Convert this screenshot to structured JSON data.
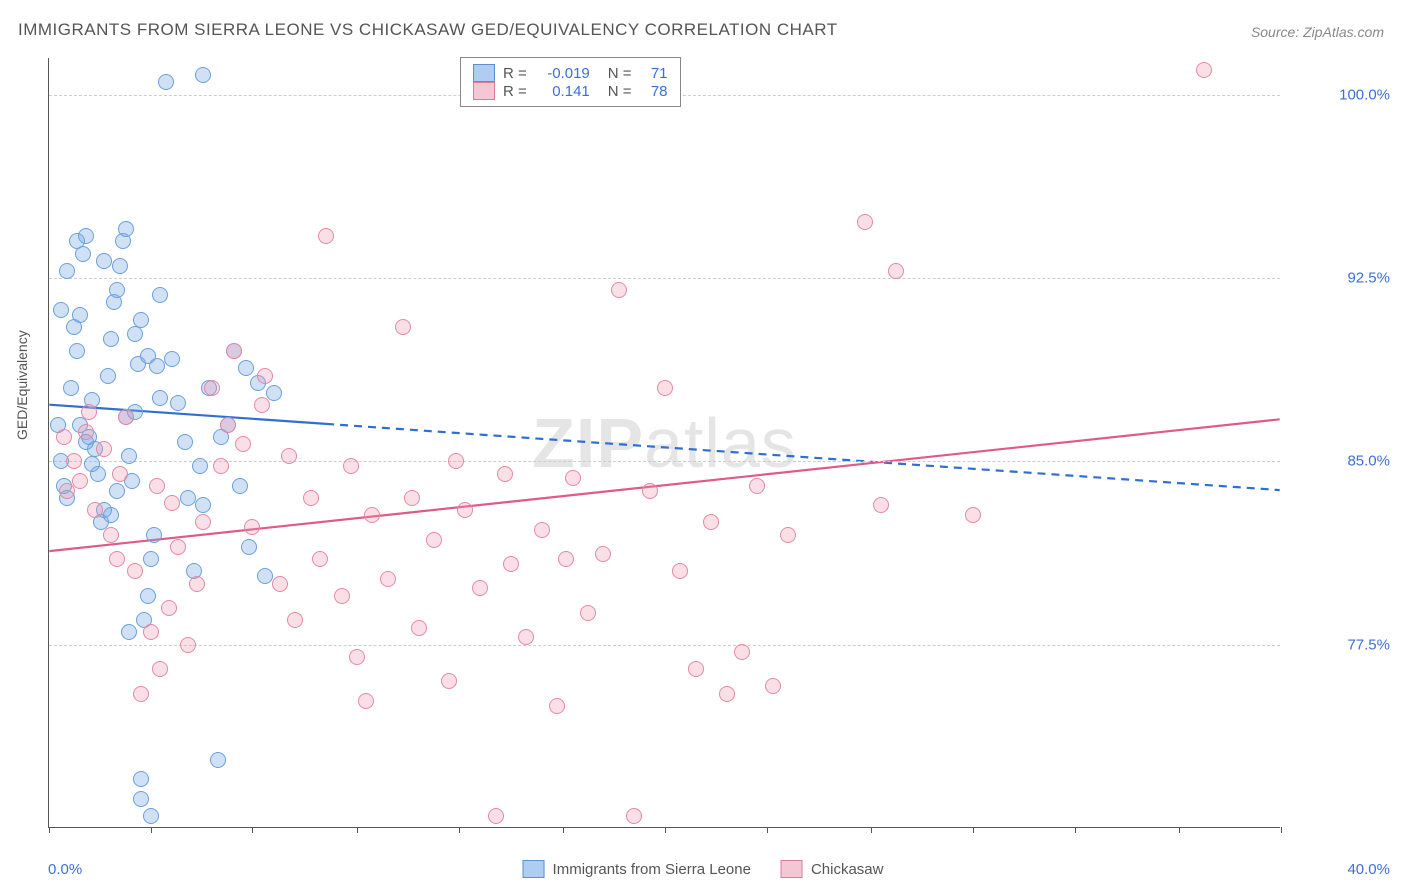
{
  "title": "IMMIGRANTS FROM SIERRA LEONE VS CHICKASAW GED/EQUIVALENCY CORRELATION CHART",
  "source_label": "Source: ",
  "source_name": "ZipAtlas.com",
  "ylabel": "GED/Equivalency",
  "watermark_bold": "ZIP",
  "watermark_rest": "atlas",
  "chart": {
    "type": "scatter",
    "background_color": "#ffffff",
    "grid_color": "#cccccc",
    "axis_color": "#555555",
    "tick_label_color": "#3b6fd8",
    "xlim": [
      0.0,
      40.0
    ],
    "ylim": [
      70.0,
      101.5
    ],
    "xtick_positions": [
      0,
      3.3,
      6.6,
      10,
      13.3,
      16.7,
      20,
      23.3,
      26.7,
      30,
      33.3,
      36.7,
      40
    ],
    "xtick_labels_shown": {
      "left": "0.0%",
      "right": "40.0%"
    },
    "ytick_positions": [
      77.5,
      85.0,
      92.5,
      100.0
    ],
    "ytick_labels": [
      "77.5%",
      "85.0%",
      "92.5%",
      "100.0%"
    ],
    "marker_radius": 8,
    "marker_stroke_width": 1.5,
    "series": [
      {
        "name": "Immigrants from Sierra Leone",
        "color_fill": "rgba(120,170,230,0.35)",
        "color_stroke": "#6aa0dc",
        "swatch_fill": "#aecdf0",
        "swatch_border": "#5a8fd0",
        "R": "-0.019",
        "N": "71",
        "trend": {
          "x1": 0.0,
          "y1": 87.3,
          "x2": 40.0,
          "y2": 83.8,
          "solid_until_x": 9.0,
          "color": "#2f6fd0",
          "width": 2.2
        },
        "points": [
          [
            0.3,
            86.5
          ],
          [
            0.4,
            85.0
          ],
          [
            0.5,
            84.0
          ],
          [
            0.6,
            83.5
          ],
          [
            0.7,
            88.0
          ],
          [
            0.8,
            90.5
          ],
          [
            0.9,
            89.5
          ],
          [
            1.0,
            91.0
          ],
          [
            1.1,
            93.5
          ],
          [
            1.2,
            94.2
          ],
          [
            1.3,
            86.0
          ],
          [
            1.4,
            87.5
          ],
          [
            1.5,
            85.5
          ],
          [
            1.6,
            84.5
          ],
          [
            1.7,
            82.5
          ],
          [
            1.8,
            83.0
          ],
          [
            1.9,
            88.5
          ],
          [
            2.0,
            90.0
          ],
          [
            2.1,
            91.5
          ],
          [
            2.2,
            92.0
          ],
          [
            2.3,
            93.0
          ],
          [
            2.4,
            94.0
          ],
          [
            2.5,
            86.8
          ],
          [
            2.6,
            85.2
          ],
          [
            2.7,
            84.2
          ],
          [
            2.8,
            87.0
          ],
          [
            2.9,
            89.0
          ],
          [
            3.0,
            90.8
          ],
          [
            3.1,
            78.5
          ],
          [
            3.2,
            79.5
          ],
          [
            3.3,
            81.0
          ],
          [
            3.4,
            82.0
          ],
          [
            3.5,
            88.9
          ],
          [
            3.6,
            91.8
          ],
          [
            3.8,
            100.5
          ],
          [
            4.0,
            89.2
          ],
          [
            4.2,
            87.4
          ],
          [
            4.5,
            83.5
          ],
          [
            4.7,
            80.5
          ],
          [
            4.9,
            84.8
          ],
          [
            5.0,
            100.8
          ],
          [
            5.2,
            88.0
          ],
          [
            5.5,
            72.8
          ],
          [
            5.8,
            86.5
          ],
          [
            6.0,
            89.5
          ],
          [
            6.2,
            84.0
          ],
          [
            6.5,
            81.5
          ],
          [
            6.8,
            88.2
          ],
          [
            7.0,
            80.3
          ],
          [
            7.3,
            87.8
          ],
          [
            3.0,
            72.0
          ],
          [
            3.3,
            70.5
          ],
          [
            2.5,
            94.5
          ],
          [
            1.8,
            93.2
          ],
          [
            0.9,
            94.0
          ],
          [
            0.6,
            92.8
          ],
          [
            0.4,
            91.2
          ],
          [
            1.0,
            86.5
          ],
          [
            1.2,
            85.8
          ],
          [
            1.4,
            84.9
          ],
          [
            2.0,
            82.8
          ],
          [
            2.2,
            83.8
          ],
          [
            2.8,
            90.2
          ],
          [
            3.2,
            89.3
          ],
          [
            3.6,
            87.6
          ],
          [
            4.4,
            85.8
          ],
          [
            5.0,
            83.2
          ],
          [
            5.6,
            86.0
          ],
          [
            6.4,
            88.8
          ],
          [
            2.6,
            78.0
          ],
          [
            3.0,
            71.2
          ]
        ]
      },
      {
        "name": "Chickasaw",
        "color_fill": "rgba(240,150,175,0.30)",
        "color_stroke": "#e389a4",
        "swatch_fill": "#f5c6d3",
        "swatch_border": "#de7b9a",
        "R": "0.141",
        "N": "78",
        "trend": {
          "x1": 0.0,
          "y1": 81.3,
          "x2": 40.0,
          "y2": 86.7,
          "solid_until_x": 40.0,
          "color": "#e05a86",
          "width": 2.2
        },
        "points": [
          [
            0.5,
            86.0
          ],
          [
            0.8,
            85.0
          ],
          [
            1.0,
            84.2
          ],
          [
            1.3,
            87.0
          ],
          [
            1.5,
            83.0
          ],
          [
            1.8,
            85.5
          ],
          [
            2.0,
            82.0
          ],
          [
            2.3,
            84.5
          ],
          [
            2.5,
            86.8
          ],
          [
            2.8,
            80.5
          ],
          [
            3.0,
            75.5
          ],
          [
            3.3,
            78.0
          ],
          [
            3.6,
            76.5
          ],
          [
            3.9,
            79.0
          ],
          [
            4.2,
            81.5
          ],
          [
            4.5,
            77.5
          ],
          [
            4.8,
            80.0
          ],
          [
            5.0,
            82.5
          ],
          [
            5.3,
            88.0
          ],
          [
            5.6,
            84.8
          ],
          [
            6.0,
            89.5
          ],
          [
            6.3,
            85.7
          ],
          [
            6.6,
            82.3
          ],
          [
            0.6,
            83.8
          ],
          [
            1.2,
            86.2
          ],
          [
            2.2,
            81.0
          ],
          [
            3.5,
            84.0
          ],
          [
            4.0,
            83.3
          ],
          [
            5.8,
            86.5
          ],
          [
            6.9,
            87.3
          ],
          [
            7.5,
            80.0
          ],
          [
            8.0,
            78.5
          ],
          [
            8.5,
            83.5
          ],
          [
            9.0,
            94.2
          ],
          [
            9.5,
            79.5
          ],
          [
            10.0,
            77.0
          ],
          [
            10.5,
            82.8
          ],
          [
            11.0,
            80.2
          ],
          [
            11.5,
            90.5
          ],
          [
            12.0,
            78.2
          ],
          [
            12.5,
            81.8
          ],
          [
            13.0,
            76.0
          ],
          [
            13.5,
            83.0
          ],
          [
            14.0,
            79.8
          ],
          [
            14.5,
            70.5
          ],
          [
            15.0,
            80.8
          ],
          [
            15.5,
            77.8
          ],
          [
            16.0,
            82.2
          ],
          [
            16.5,
            75.0
          ],
          [
            17.0,
            84.3
          ],
          [
            17.5,
            78.8
          ],
          [
            18.0,
            81.2
          ],
          [
            18.5,
            92.0
          ],
          [
            19.0,
            70.5
          ],
          [
            19.5,
            83.8
          ],
          [
            20.0,
            88.0
          ],
          [
            20.5,
            80.5
          ],
          [
            21.0,
            76.5
          ],
          [
            21.5,
            82.5
          ],
          [
            22.0,
            75.5
          ],
          [
            22.5,
            77.2
          ],
          [
            23.0,
            84.0
          ],
          [
            23.5,
            75.8
          ],
          [
            24.0,
            82.0
          ],
          [
            26.5,
            94.8
          ],
          [
            27.0,
            83.2
          ],
          [
            27.5,
            92.8
          ],
          [
            30.0,
            82.8
          ],
          [
            10.3,
            75.2
          ],
          [
            11.8,
            83.5
          ],
          [
            13.2,
            85.0
          ],
          [
            14.8,
            84.5
          ],
          [
            8.8,
            81.0
          ],
          [
            9.8,
            84.8
          ],
          [
            7.0,
            88.5
          ],
          [
            7.8,
            85.2
          ],
          [
            37.5,
            101.0
          ],
          [
            16.8,
            81.0
          ]
        ]
      }
    ],
    "stats_legend": {
      "R_label": "R =",
      "N_label": "N ="
    },
    "bottom_legend_labels": [
      "Immigrants from Sierra Leone",
      "Chickasaw"
    ]
  }
}
